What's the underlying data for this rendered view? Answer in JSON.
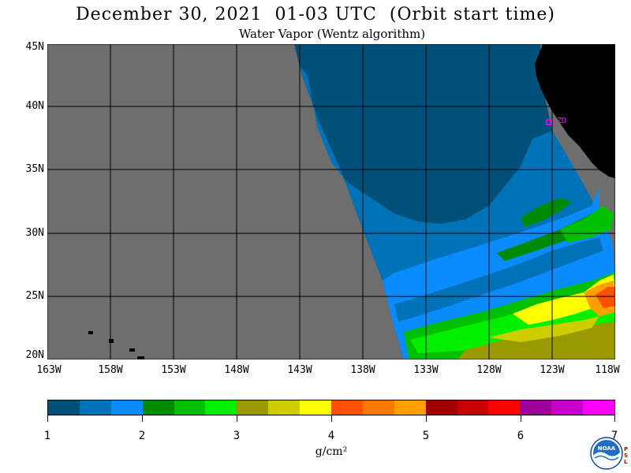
{
  "title": "December 30, 2021  01-03 UTC  (Orbit start time)",
  "subtitle": "Water Vapor (Wentz algorithm)",
  "lat_labels": [
    "45N",
    "40N",
    "35N",
    "30N",
    "25N",
    "20N"
  ],
  "lon_labels": [
    "163W",
    "158W",
    "153W",
    "148W",
    "143W",
    "138W",
    "133W",
    "128W",
    "123W",
    "118W"
  ],
  "station_label": "CZD",
  "colorbar": {
    "ticks": [
      "1",
      "2",
      "3",
      "4",
      "5",
      "6",
      "7"
    ],
    "units": "g/cm²",
    "colors": [
      "#00507a",
      "#0073b8",
      "#0a8cff",
      "#008a00",
      "#00c000",
      "#00f000",
      "#9a9a00",
      "#cdcd00",
      "#ffff00",
      "#ff5000",
      "#ff7800",
      "#ffa000",
      "#a00000",
      "#c80000",
      "#ff0000",
      "#9b009b",
      "#c800c8",
      "#ff00ff"
    ]
  },
  "colors": {
    "no_data": "#6e6e6e",
    "land": "#000000",
    "station": "#ff00ff"
  },
  "logo": {
    "name": "noaa-logo",
    "text": "NOAA",
    "side_text": "PSL"
  }
}
